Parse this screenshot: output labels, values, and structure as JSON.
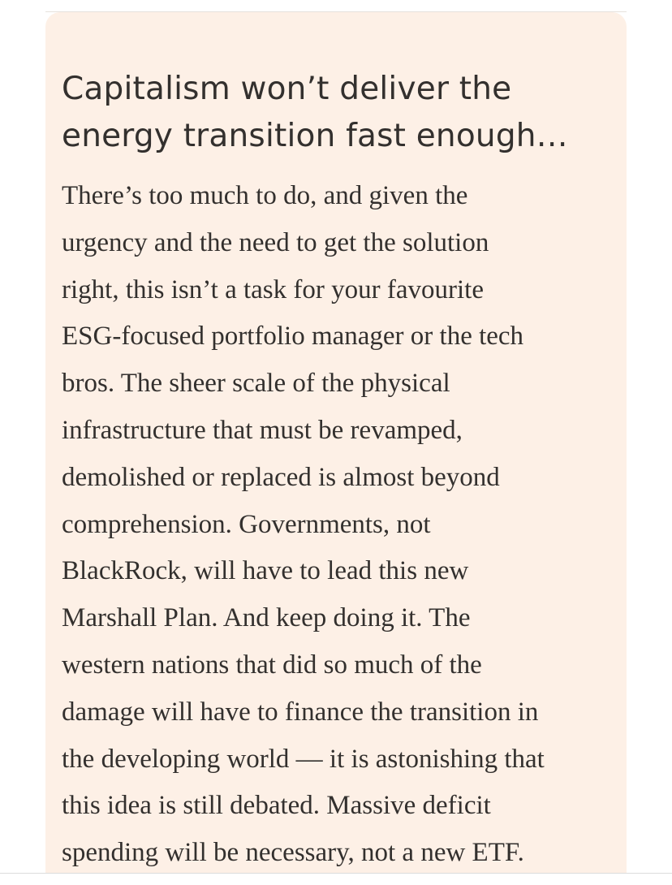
{
  "card": {
    "headline": "Capitalism won’t deliver the\nenergy transition fast enough…",
    "body": "There’s too much to do, and given the\nurgency and the need to get the solution\nright, this isn’t a task for your favourite\nESG-focused portfolio manager or the tech\nbros. The sheer scale of the physical\ninfrastructure that must be revamped,\ndemolished or replaced is almost beyond\ncomprehension. Governments, not\nBlackRock, will have to lead this new\nMarshall Plan. And keep doing it. The\nwestern nations that did so much of the\ndamage will have to finance the transition in\nthe developing world — it is astonishing that\nthis idea is still debated. Massive deficit\nspending will be necessary, not a new ETF."
  },
  "colors": {
    "card_background": "#fdf0e6",
    "text": "#33302e"
  }
}
